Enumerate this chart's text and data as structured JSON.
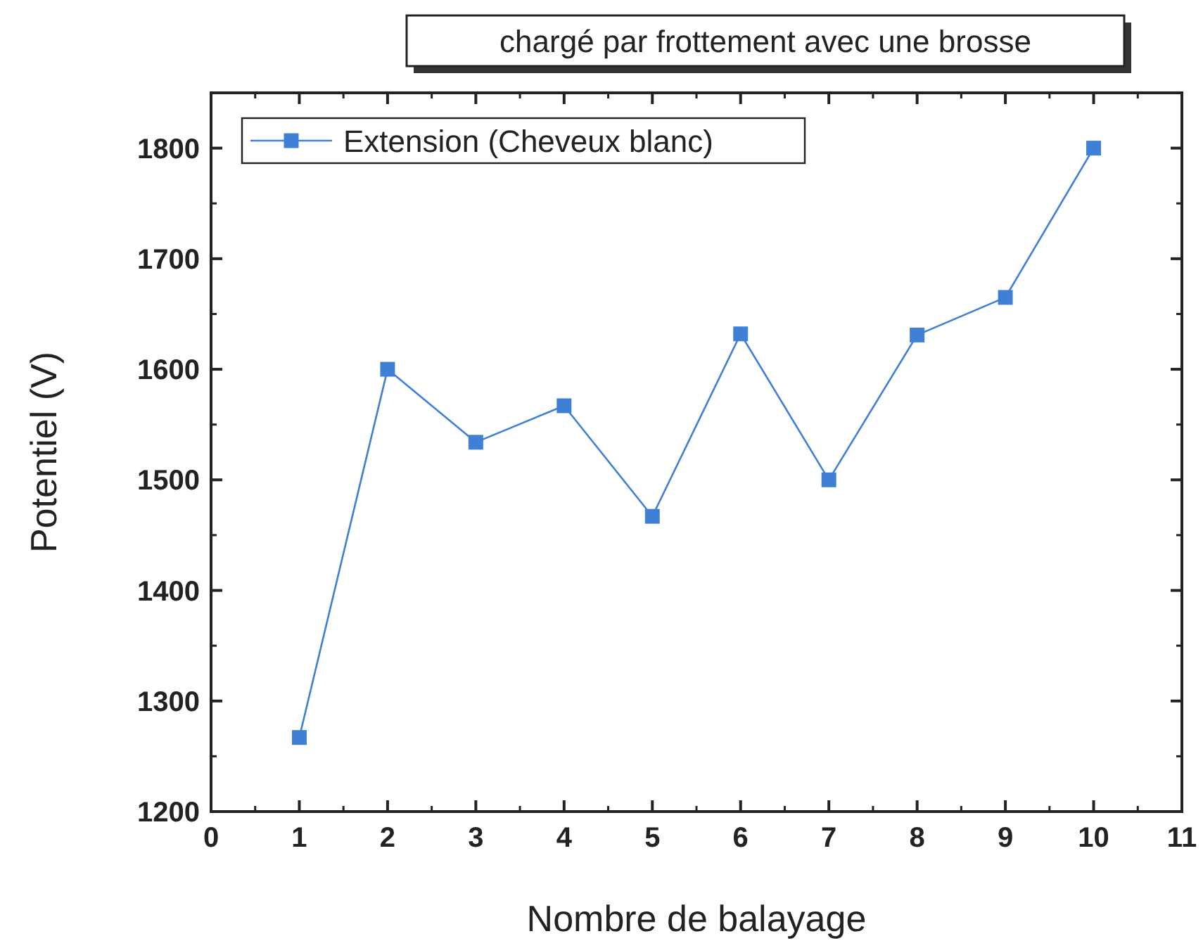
{
  "chart_data": {
    "type": "line",
    "title": "chargé par frottement avec une brosse",
    "xlabel": "Nombre de balayage",
    "ylabel": "Potentiel (V)",
    "x": [
      1,
      2,
      3,
      4,
      5,
      6,
      7,
      8,
      9,
      10
    ],
    "series": [
      {
        "name": "Extension (Cheveux blanc)",
        "color": "#3f7fd6",
        "values": [
          1267,
          1600,
          1534,
          1567,
          1467,
          1632,
          1500,
          1631,
          1665,
          1800
        ]
      }
    ],
    "xlim": [
      0,
      11
    ],
    "xticks": [
      0,
      1,
      2,
      3,
      4,
      5,
      6,
      7,
      8,
      9,
      10,
      11
    ],
    "ylim": [
      1200,
      1850
    ],
    "yticks": [
      1200,
      1300,
      1400,
      1500,
      1600,
      1700,
      1800
    ],
    "grid": false,
    "legend": "top left",
    "marker": "square",
    "line_style": "solid"
  }
}
